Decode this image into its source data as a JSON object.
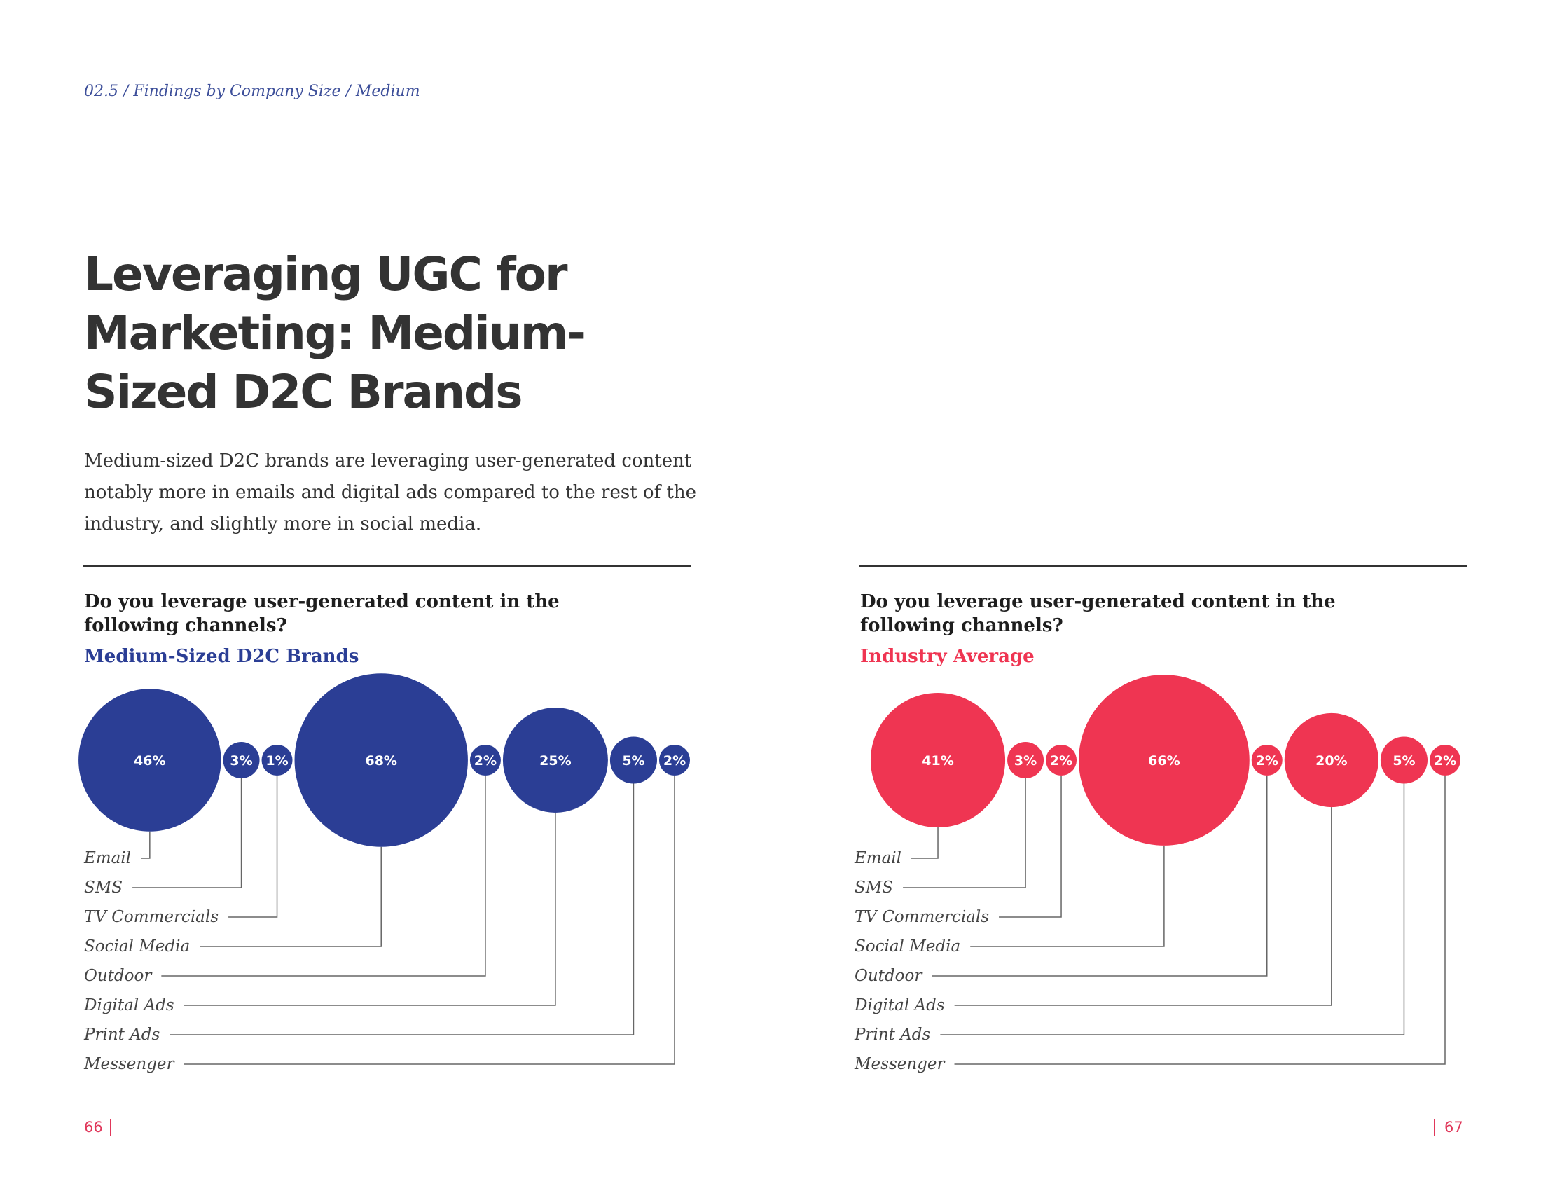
{
  "breadcrumb": "02.5 / Findings by Company Size / Medium",
  "title": "Leveraging UGC for Marketing: Medium-Sized D2C Brands",
  "intro": "Medium-sized D2C brands are leveraging user-generated content notably more in emails and digital ads compared to the rest of the industry, and slightly more in social media.",
  "page_left": "66",
  "page_right": "67",
  "colors": {
    "medium": "#2b3e95",
    "industry": "#ef3552",
    "leader": "#666666"
  },
  "chart_data": [
    {
      "type": "bubble",
      "question": "Do you leverage user-generated content in the following channels?",
      "subtitle": "Medium-Sized D2C Brands",
      "categories": [
        "Email",
        "SMS",
        "TV Commercials",
        "Social Media",
        "Outdoor",
        "Digital Ads",
        "Print Ads",
        "Messenger"
      ],
      "values": [
        46,
        3,
        1,
        68,
        2,
        25,
        5,
        2
      ],
      "value_labels": [
        "46%",
        "3%",
        "1%",
        "68%",
        "2%",
        "25%",
        "5%",
        "2%"
      ],
      "unit": "%",
      "color": "#2b3e95"
    },
    {
      "type": "bubble",
      "question": "Do you leverage user-generated content in the following channels?",
      "subtitle": "Industry Average",
      "categories": [
        "Email",
        "SMS",
        "TV Commercials",
        "Social Media",
        "Outdoor",
        "Digital Ads",
        "Print Ads",
        "Messenger"
      ],
      "values": [
        41,
        3,
        2,
        66,
        2,
        20,
        5,
        2
      ],
      "value_labels": [
        "41%",
        "3%",
        "2%",
        "66%",
        "2%",
        "20%",
        "5%",
        "2%"
      ],
      "unit": "%",
      "color": "#ef3552"
    }
  ]
}
